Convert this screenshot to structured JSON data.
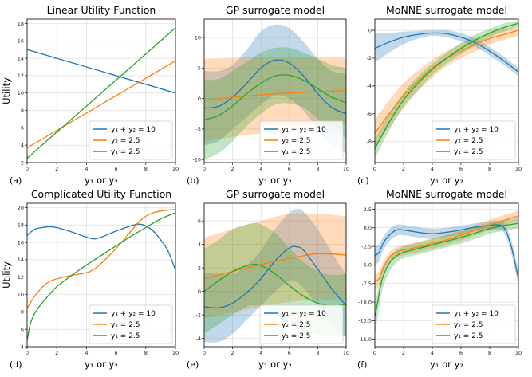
{
  "chart_data": [
    {
      "panel": "(a)",
      "type": "line",
      "title": "Linear Utility Function",
      "xlabel": "y₁ or y₂",
      "ylabel": "Utility",
      "xlim": [
        0,
        10
      ],
      "ylim": [
        2,
        18.5
      ],
      "xticks": [
        0,
        2,
        4,
        6,
        8,
        10
      ],
      "yticks": [
        2,
        4,
        6,
        8,
        10,
        12,
        14,
        16,
        18
      ],
      "grid": true,
      "legend": "bottom-right",
      "series": [
        {
          "name": "y₁ + y₂ = 10",
          "color": "#1f77b4",
          "x": [
            0,
            10
          ],
          "y": [
            15,
            10
          ]
        },
        {
          "name": "y₂ = 2.5",
          "color": "#ff7f0e",
          "x": [
            0,
            10
          ],
          "y": [
            3.7,
            13.7
          ]
        },
        {
          "name": "y₁ = 2.5",
          "color": "#2ca02c",
          "x": [
            0,
            10
          ],
          "y": [
            2.5,
            17.5
          ]
        }
      ]
    },
    {
      "panel": "(b)",
      "type": "line",
      "title": "GP surrogate model",
      "xlabel": "y₁ or y₂",
      "ylabel": "",
      "xlim": [
        0,
        10
      ],
      "ylim": [
        -10.5,
        13
      ],
      "xticks": [
        0,
        2,
        4,
        6,
        8,
        10
      ],
      "yticks": [
        -10,
        -5,
        0,
        5,
        10
      ],
      "grid": true,
      "legend": "bottom-right",
      "series": [
        {
          "name": "y₁ + y₂ = 10",
          "color": "#1f77b4",
          "x": [
            0,
            1,
            2,
            3,
            4,
            5,
            6,
            7,
            8,
            9,
            10
          ],
          "y": [
            -1.6,
            -1.3,
            0.2,
            2.5,
            5.0,
            6.3,
            5.8,
            3.7,
            0.8,
            -1.5,
            -2.5
          ],
          "upper": [
            4.5,
            4.5,
            5.5,
            8.0,
            11.0,
            12.1,
            11.5,
            9.3,
            6.5,
            4.5,
            4.0
          ],
          "lower": [
            -7.7,
            -7.0,
            -5.0,
            -3.0,
            -1.0,
            0.5,
            0.0,
            -2.0,
            -5.0,
            -7.5,
            -9.0
          ]
        },
        {
          "name": "y₂ = 2.5",
          "color": "#ff7f0e",
          "x": [
            0,
            2,
            4,
            6,
            8,
            10
          ],
          "y": [
            -0.3,
            0.2,
            0.6,
            0.9,
            1.1,
            1.3
          ],
          "upper": [
            6.5,
            6.7,
            6.8,
            6.8,
            6.8,
            6.8
          ],
          "lower": [
            -7.0,
            -6.3,
            -5.7,
            -5.0,
            -4.7,
            -4.3
          ]
        },
        {
          "name": "y₁ = 2.5",
          "color": "#2ca02c",
          "x": [
            0,
            1,
            2,
            3,
            4,
            5,
            6,
            7,
            8,
            9,
            10
          ],
          "y": [
            -3.5,
            -2.8,
            -1.2,
            0.8,
            2.5,
            3.7,
            3.8,
            3.0,
            1.6,
            0.2,
            -0.7
          ],
          "upper": [
            3.0,
            3.2,
            4.5,
            6.0,
            7.5,
            8.3,
            8.3,
            7.5,
            6.5,
            5.5,
            5.0
          ],
          "lower": [
            -10.0,
            -9.0,
            -7.0,
            -4.5,
            -2.5,
            -1.0,
            -0.8,
            -1.5,
            -3.3,
            -5.0,
            -6.5
          ]
        }
      ]
    },
    {
      "panel": "(c)",
      "type": "line",
      "title": "MoNNE surrogate model",
      "xlabel": "y₁ or y₂",
      "ylabel": "",
      "xlim": [
        0,
        10
      ],
      "ylim": [
        -9.5,
        0.8
      ],
      "xticks": [
        0,
        2,
        4,
        6,
        8,
        10
      ],
      "yticks": [
        -8,
        -6,
        -4,
        -2,
        0
      ],
      "grid": true,
      "legend": "bottom-right",
      "series": [
        {
          "name": "y₁ + y₂ = 10",
          "color": "#1f77b4",
          "x": [
            0,
            1,
            2,
            3,
            4,
            5,
            6,
            7,
            8,
            9,
            10
          ],
          "y": [
            -1.3,
            -0.85,
            -0.5,
            -0.3,
            -0.2,
            -0.25,
            -0.5,
            -0.9,
            -1.5,
            -2.2,
            -3.0
          ],
          "upper": [
            -0.2,
            -0.2,
            -0.1,
            -0.05,
            0.0,
            0.0,
            -0.2,
            -0.6,
            -1.2,
            -1.9,
            -2.7
          ],
          "lower": [
            -2.3,
            -1.6,
            -1.0,
            -0.6,
            -0.4,
            -0.5,
            -0.8,
            -1.2,
            -1.8,
            -2.5,
            -3.3
          ]
        },
        {
          "name": "y₂ = 2.5",
          "color": "#ff7f0e",
          "x": [
            0,
            1,
            2,
            3,
            4,
            5,
            6,
            7,
            8,
            9,
            10
          ],
          "y": [
            -7.4,
            -6.0,
            -4.7,
            -3.6,
            -2.7,
            -2.0,
            -1.5,
            -1.0,
            -0.6,
            -0.3,
            0.0
          ],
          "upper": [
            -6.4,
            -5.0,
            -3.8,
            -2.9,
            -2.1,
            -1.5,
            -1.0,
            -0.6,
            -0.2,
            0.1,
            0.3
          ],
          "lower": [
            -8.4,
            -7.0,
            -5.6,
            -4.4,
            -3.4,
            -2.6,
            -2.0,
            -1.5,
            -1.0,
            -0.7,
            -0.4
          ]
        },
        {
          "name": "y₁ = 2.5",
          "color": "#2ca02c",
          "x": [
            0,
            1,
            2,
            3,
            4,
            5,
            6,
            7,
            8,
            9,
            10
          ],
          "y": [
            -8.5,
            -6.6,
            -5.0,
            -3.8,
            -2.8,
            -2.0,
            -1.3,
            -0.7,
            -0.2,
            0.2,
            0.5
          ],
          "upper": [
            -7.8,
            -6.0,
            -4.5,
            -3.3,
            -2.4,
            -1.6,
            -0.9,
            -0.3,
            0.1,
            0.5,
            0.7
          ],
          "lower": [
            -9.2,
            -7.2,
            -5.5,
            -4.3,
            -3.2,
            -2.4,
            -1.7,
            -1.1,
            -0.5,
            -0.1,
            0.3
          ]
        }
      ]
    },
    {
      "panel": "(d)",
      "type": "line",
      "title": "Complicated Utility Function",
      "xlabel": "y₁ or y₂",
      "ylabel": "Utility",
      "xlim": [
        0,
        10
      ],
      "ylim": [
        4,
        20.5
      ],
      "xticks": [
        0,
        2,
        4,
        6,
        8,
        10
      ],
      "yticks": [
        4,
        6,
        8,
        10,
        12,
        14,
        16,
        18,
        20
      ],
      "grid": true,
      "legend": "bottom-right",
      "series": [
        {
          "name": "y₁ + y₂ = 10",
          "color": "#1f77b4",
          "x": [
            0,
            0.5,
            1,
            1.5,
            2,
            3,
            4,
            4.5,
            5,
            6,
            7,
            7.5,
            8,
            8.5,
            9,
            9.5,
            10
          ],
          "y": [
            16.8,
            17.5,
            17.7,
            17.8,
            17.7,
            17.2,
            16.6,
            16.4,
            16.6,
            17.3,
            17.9,
            18.1,
            17.9,
            17.3,
            16.3,
            15.0,
            12.8
          ]
        },
        {
          "name": "y₂ = 2.5",
          "color": "#ff7f0e",
          "x": [
            0,
            0.5,
            1,
            1.5,
            2,
            3,
            4,
            4.5,
            5,
            6,
            7,
            7.5,
            8,
            8.5,
            9,
            10
          ],
          "y": [
            8.4,
            9.8,
            10.8,
            11.5,
            11.8,
            12.2,
            12.5,
            12.9,
            13.6,
            15.3,
            17.3,
            18.3,
            19.0,
            19.4,
            19.6,
            19.8
          ]
        },
        {
          "name": "y₁ = 2.5",
          "color": "#2ca02c",
          "x": [
            0,
            0.2,
            0.5,
            1,
            1.5,
            2,
            3,
            4,
            5,
            6,
            7,
            8,
            9,
            10
          ],
          "y": [
            4.7,
            6.5,
            7.8,
            9.0,
            10.0,
            10.9,
            12.2,
            13.4,
            14.5,
            15.6,
            16.7,
            17.7,
            18.7,
            19.4
          ]
        }
      ]
    },
    {
      "panel": "(e)",
      "type": "line",
      "title": "GP surrogate model",
      "xlabel": "y₁ or y₂",
      "ylabel": "",
      "xlim": [
        0,
        10
      ],
      "ylim": [
        -4.7,
        7.5
      ],
      "xticks": [
        0,
        2,
        4,
        6,
        8,
        10
      ],
      "yticks": [
        -4,
        -2,
        0,
        2,
        4,
        6
      ],
      "grid": true,
      "legend": "bottom-right",
      "series": [
        {
          "name": "y₁ + y₂ = 10",
          "color": "#1f77b4",
          "x": [
            0,
            1,
            2,
            3,
            4,
            5,
            6,
            6.5,
            7,
            8,
            9,
            10
          ],
          "y": [
            -1.3,
            -1.4,
            -1.0,
            -0.1,
            1.1,
            2.6,
            3.7,
            3.8,
            3.5,
            1.9,
            0.2,
            -1.2
          ],
          "upper": [
            1.6,
            1.5,
            1.5,
            2.2,
            3.5,
            5.3,
            6.7,
            7.0,
            6.8,
            5.3,
            3.3,
            1.4
          ],
          "lower": [
            -4.3,
            -4.3,
            -3.6,
            -2.4,
            -1.2,
            0.0,
            0.9,
            0.8,
            0.3,
            -1.2,
            -2.9,
            -3.9
          ]
        },
        {
          "name": "y₂ = 2.5",
          "color": "#ff7f0e",
          "x": [
            0,
            2,
            4,
            6,
            8,
            10
          ],
          "y": [
            1.1,
            1.7,
            2.3,
            2.8,
            3.2,
            3.1
          ],
          "upper": [
            4.6,
            5.3,
            6.0,
            6.6,
            6.6,
            6.4
          ],
          "lower": [
            -2.3,
            -1.8,
            -1.3,
            -0.9,
            -0.7,
            -0.8
          ]
        },
        {
          "name": "y₁ = 2.5",
          "color": "#2ca02c",
          "x": [
            0,
            1,
            2,
            3,
            3.5,
            4,
            5,
            6,
            7,
            8,
            9,
            10
          ],
          "y": [
            0.0,
            0.9,
            1.7,
            2.2,
            2.3,
            2.2,
            1.5,
            0.5,
            -0.4,
            -1.0,
            -1.2,
            -1.1
          ],
          "upper": [
            3.6,
            4.4,
            5.3,
            5.7,
            5.8,
            5.7,
            5.0,
            3.7,
            2.5,
            1.7,
            1.4,
            1.5
          ],
          "lower": [
            -3.6,
            -2.8,
            -2.0,
            -1.3,
            -1.2,
            -1.3,
            -2.0,
            -2.7,
            -3.3,
            -3.7,
            -3.8,
            -3.7
          ]
        }
      ]
    },
    {
      "panel": "(f)",
      "type": "line",
      "title": "MoNNE surrogate model",
      "xlabel": "y₁ or y₂",
      "ylabel": "",
      "xlim": [
        0,
        10
      ],
      "ylim": [
        -16,
        3.3
      ],
      "xticks": [
        0,
        2,
        4,
        6,
        8,
        10
      ],
      "yticks": [
        -15.0,
        -12.5,
        -10.0,
        -7.5,
        -5.0,
        -2.5,
        0.0,
        2.5
      ],
      "grid": true,
      "legend": "bottom-right",
      "series": [
        {
          "name": "y₁ + y₂ = 10",
          "color": "#1f77b4",
          "x": [
            0,
            0.3,
            0.6,
            1,
            1.5,
            2,
            3,
            4,
            5,
            6,
            7,
            8,
            8.5,
            9,
            9.5,
            10
          ],
          "y": [
            -3.8,
            -3.3,
            -2.0,
            -1.0,
            -0.3,
            -0.3,
            -0.6,
            -0.8,
            -0.6,
            -0.3,
            0.1,
            0.3,
            0.4,
            0.0,
            -2.5,
            -6.8
          ],
          "upper": [
            -2.5,
            -2.2,
            -1.2,
            -0.2,
            0.4,
            0.4,
            0.1,
            -0.1,
            0.0,
            0.3,
            0.6,
            0.9,
            1.0,
            0.7,
            -1.6,
            -5.8
          ],
          "lower": [
            -5.0,
            -4.5,
            -3.0,
            -1.8,
            -1.1,
            -1.0,
            -1.3,
            -1.5,
            -1.2,
            -0.9,
            -0.4,
            -0.3,
            -0.3,
            -0.7,
            -3.4,
            -7.8
          ]
        },
        {
          "name": "y₂ = 2.5",
          "color": "#ff7f0e",
          "x": [
            0,
            0.3,
            0.6,
            1,
            1.5,
            2,
            3,
            4,
            5,
            6,
            7,
            8,
            9,
            10
          ],
          "y": [
            -7.3,
            -6.8,
            -5.3,
            -4.0,
            -3.3,
            -3.0,
            -2.6,
            -2.1,
            -1.6,
            -1.0,
            -0.3,
            0.4,
            1.0,
            1.6
          ],
          "upper": [
            -6.3,
            -5.8,
            -4.5,
            -3.3,
            -2.6,
            -2.3,
            -1.9,
            -1.4,
            -0.9,
            -0.3,
            0.4,
            1.1,
            1.7,
            2.3
          ],
          "lower": [
            -8.3,
            -7.8,
            -6.1,
            -4.7,
            -4.0,
            -3.7,
            -3.3,
            -2.8,
            -2.3,
            -1.7,
            -1.0,
            -0.3,
            0.3,
            0.9
          ]
        },
        {
          "name": "y₁ = 2.5",
          "color": "#2ca02c",
          "x": [
            0,
            0.2,
            0.5,
            1,
            1.5,
            2,
            3,
            4,
            5,
            6,
            7,
            8,
            9,
            10
          ],
          "y": [
            -12.0,
            -10.0,
            -7.0,
            -4.8,
            -3.8,
            -3.3,
            -2.8,
            -2.3,
            -1.8,
            -1.3,
            -0.7,
            -0.1,
            0.3,
            0.6
          ],
          "upper": [
            -10.5,
            -8.5,
            -5.8,
            -3.9,
            -3.0,
            -2.5,
            -2.0,
            -1.5,
            -1.0,
            -0.5,
            0.1,
            0.6,
            1.0,
            1.3
          ],
          "lower": [
            -14.5,
            -12.0,
            -8.5,
            -6.0,
            -4.7,
            -4.1,
            -3.6,
            -3.1,
            -2.6,
            -2.1,
            -1.5,
            -0.8,
            -0.4,
            -0.1
          ]
        }
      ]
    }
  ]
}
